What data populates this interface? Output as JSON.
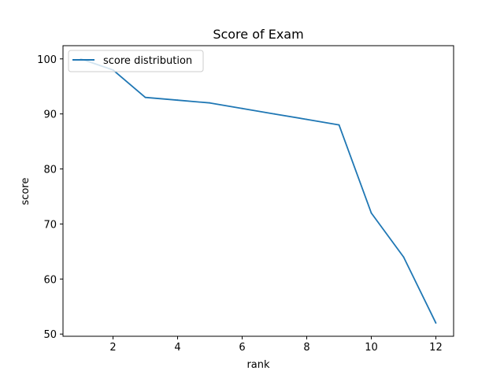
{
  "chart_data": {
    "type": "line",
    "title": "Score of Exam",
    "xlabel": "rank",
    "ylabel": "score",
    "xlim": [
      0.45,
      12.55
    ],
    "ylim": [
      49.6,
      102.4
    ],
    "xticks": [
      2,
      4,
      6,
      8,
      10,
      12
    ],
    "yticks": [
      50,
      60,
      70,
      80,
      90,
      100
    ],
    "grid": false,
    "legend_position": "upper-left",
    "series": [
      {
        "name": "score distribution",
        "color": "#1f77b4",
        "x": [
          1,
          2,
          3,
          4,
          5,
          6,
          7,
          8,
          9,
          10,
          11,
          12
        ],
        "y": [
          100,
          98,
          93,
          92.5,
          92,
          91,
          90,
          89,
          88,
          72,
          64,
          52
        ]
      }
    ]
  }
}
